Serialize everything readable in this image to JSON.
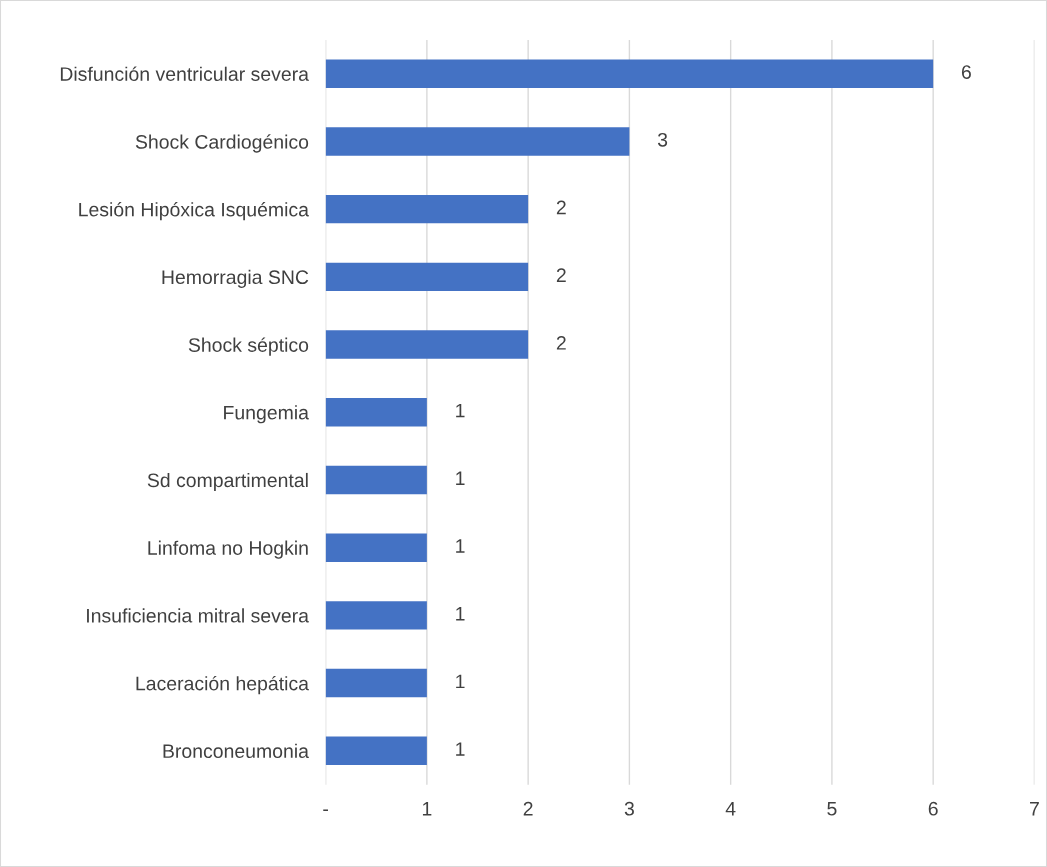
{
  "chart_data": {
    "type": "bar",
    "orientation": "horizontal",
    "categories": [
      "Disfunción ventricular severa",
      "Shock Cardiogénico",
      "Lesión Hipóxica Isquémica",
      "Hemorragia SNC",
      "Shock séptico",
      "Fungemia",
      "Sd compartimental",
      "Linfoma no Hogkin",
      "Insuficiencia mitral severa",
      "Laceración hepática",
      "Bronconeumonia"
    ],
    "values": [
      6,
      3,
      2,
      2,
      2,
      1,
      1,
      1,
      1,
      1,
      1
    ],
    "color": "#4472c4",
    "xlim": [
      0,
      7
    ],
    "xticks": [
      {
        "value": 0,
        "label": "-"
      },
      1,
      2,
      3,
      4,
      5,
      6,
      7
    ],
    "grid": "x",
    "data_labels": true
  }
}
